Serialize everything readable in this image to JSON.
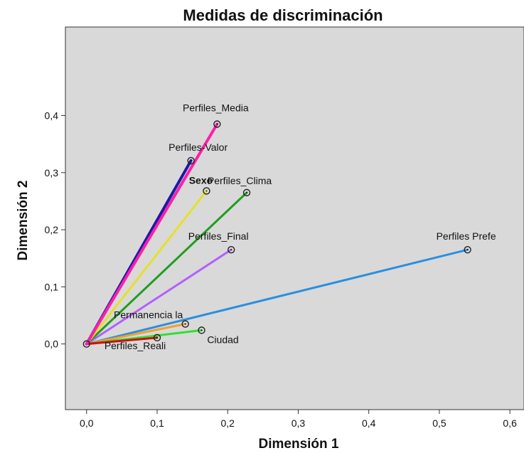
{
  "chart_data": {
    "type": "scatter",
    "title": "Medidas de discriminación",
    "xlabel": "Dimensión 1",
    "ylabel": "Dimensión 2",
    "xlim": [
      -0.03,
      0.62
    ],
    "ylim": [
      -0.115,
      0.555
    ],
    "xticks": [
      0.0,
      0.1,
      0.2,
      0.3,
      0.4,
      0.5,
      0.6
    ],
    "yticks": [
      0.0,
      0.1,
      0.2,
      0.3,
      0.4
    ],
    "xtick_labels": [
      "0,0",
      "0,1",
      "0,2",
      "0,3",
      "0,4",
      "0,5",
      "0,6"
    ],
    "ytick_labels": [
      "0,0",
      "0,1",
      "0,2",
      "0,3",
      "0,4"
    ],
    "grid": false,
    "plot_background": "#d9d9d9",
    "vectors_from_origin": true,
    "points": [
      {
        "name": "Perfiles_Media",
        "x": 0.185,
        "y": 0.385,
        "color": "#ff1fa8",
        "bold": false
      },
      {
        "name": "Perfiles-Valor",
        "x": 0.148,
        "y": 0.321,
        "color": "#1a1aa8",
        "bold": false
      },
      {
        "name": "Sexo",
        "x": 0.17,
        "y": 0.268,
        "color": "#e6e02a",
        "bold": true
      },
      {
        "name": "Perfiles_Clima",
        "x": 0.227,
        "y": 0.265,
        "color": "#1f9e1f",
        "bold": false
      },
      {
        "name": "Perfiles_Final",
        "x": 0.205,
        "y": 0.165,
        "color": "#b060ff",
        "bold": false
      },
      {
        "name": "Perfiles Prefe",
        "x": 0.54,
        "y": 0.165,
        "color": "#2a8fe0",
        "bold": false
      },
      {
        "name": "Permanencia la",
        "x": 0.14,
        "y": 0.035,
        "color": "#f0a030",
        "bold": false
      },
      {
        "name": "Ciudad",
        "x": 0.163,
        "y": 0.024,
        "color": "#30e030",
        "bold": false
      },
      {
        "name": "Perfiles_Reali",
        "x": 0.1,
        "y": 0.011,
        "color": "#d01010",
        "bold": false
      }
    ]
  }
}
